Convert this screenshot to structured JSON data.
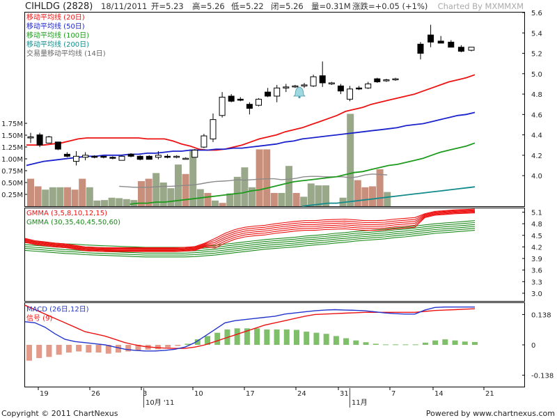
{
  "header": {
    "symbol": "CIHLDG (2828)",
    "date": "18/11/2011",
    "open": "开=5.23",
    "high": "高=5.26",
    "low": "低=5.22",
    "close": "闭=5.26",
    "volume": "量=0.31M",
    "change": "涨跌=+0.05 (+1%)",
    "charted_by": "Charted By MXMMXM"
  },
  "footer": {
    "copyright": "Copyright © 2011 ChartNexus",
    "powered_by": "Powered by www.chartnexus.com"
  },
  "x_axis": {
    "tick_labels": [
      "19",
      "26",
      "3",
      "10",
      "17",
      "24",
      "31",
      "7",
      "14",
      "21"
    ],
    "month_labels": [
      "10月 '11",
      "11月"
    ]
  },
  "colors": {
    "ma20": "#ee1111",
    "ma50": "#1a22cc",
    "ma100": "#1c9a1c",
    "ma200": "#138a8a",
    "vol_ma": "#8a8a8a",
    "vol_up": "#9aa88a",
    "vol_down": "#c8907c",
    "gmma_short": "#ee1111",
    "gmma_long": "#1a8a1a",
    "macd": "#2233cc",
    "signal": "#ee1111",
    "hist_pos": "#7fbf6a",
    "hist_neg": "#e49a88"
  },
  "chart_data": [
    {
      "type": "candlestick",
      "title": "CIHLDG (2828)",
      "ylim": [
        3.7,
        5.6
      ],
      "y_ticks": [
        4.0,
        4.2,
        4.4,
        4.6,
        4.8,
        5.0,
        5.2,
        5.4,
        5.6
      ],
      "y_tick_labels": [
        "4.0",
        "4.2",
        "4.4",
        "4.6",
        "4.8",
        "5.0",
        "5.2",
        "5.4",
        "5.6"
      ],
      "candles": [
        {
          "o": 4.37,
          "h": 4.42,
          "l": 4.32,
          "c": 4.38
        },
        {
          "o": 4.4,
          "h": 4.42,
          "l": 4.28,
          "c": 4.3
        },
        {
          "o": 4.32,
          "h": 4.39,
          "l": 4.33,
          "c": 4.38
        },
        {
          "o": 4.33,
          "h": 4.33,
          "l": 4.25,
          "c": 4.26
        },
        {
          "o": 4.21,
          "h": 4.23,
          "l": 4.18,
          "c": 4.19
        },
        {
          "o": 4.14,
          "h": 4.24,
          "l": 4.1,
          "c": 4.19
        },
        {
          "o": 4.18,
          "h": 4.23,
          "l": 4.15,
          "c": 4.2
        },
        {
          "o": 4.19,
          "h": 4.2,
          "l": 4.17,
          "c": 4.18
        },
        {
          "o": 4.19,
          "h": 4.19,
          "l": 4.17,
          "c": 4.18
        },
        {
          "o": 4.18,
          "h": 4.19,
          "l": 4.16,
          "c": 4.17
        },
        {
          "o": 4.15,
          "h": 4.2,
          "l": 4.15,
          "c": 4.19
        },
        {
          "o": 4.21,
          "h": 4.22,
          "l": 4.18,
          "c": 4.19
        },
        {
          "o": 4.19,
          "h": 4.2,
          "l": 4.15,
          "c": 4.16
        },
        {
          "o": 4.19,
          "h": 4.2,
          "l": 4.16,
          "c": 4.16
        },
        {
          "o": 4.18,
          "h": 4.24,
          "l": 4.16,
          "c": 4.2
        },
        {
          "o": 4.19,
          "h": 4.21,
          "l": 4.17,
          "c": 4.18
        },
        {
          "o": 4.18,
          "h": 4.2,
          "l": 4.17,
          "c": 4.19
        },
        {
          "o": 4.17,
          "h": 4.18,
          "l": 4.16,
          "c": 4.17
        },
        {
          "o": 4.18,
          "h": 4.26,
          "l": 4.18,
          "c": 4.25
        },
        {
          "o": 4.28,
          "h": 4.41,
          "l": 4.27,
          "c": 4.39
        },
        {
          "o": 4.36,
          "h": 4.61,
          "l": 4.33,
          "c": 4.55
        },
        {
          "o": 4.59,
          "h": 4.82,
          "l": 4.57,
          "c": 4.77
        },
        {
          "o": 4.78,
          "h": 4.8,
          "l": 4.72,
          "c": 4.73
        },
        {
          "o": 4.75,
          "h": 4.77,
          "l": 4.73,
          "c": 4.74
        },
        {
          "o": 4.7,
          "h": 4.72,
          "l": 4.6,
          "c": 4.66
        },
        {
          "o": 4.69,
          "h": 4.76,
          "l": 4.68,
          "c": 4.75
        },
        {
          "o": 4.82,
          "h": 4.86,
          "l": 4.77,
          "c": 4.78
        },
        {
          "o": 4.78,
          "h": 4.89,
          "l": 4.72,
          "c": 4.86
        },
        {
          "o": 4.86,
          "h": 4.9,
          "l": 4.82,
          "c": 4.87
        },
        {
          "o": 4.88,
          "h": 4.89,
          "l": 4.86,
          "c": 4.88
        },
        {
          "o": 4.88,
          "h": 4.91,
          "l": 4.86,
          "c": 4.89
        },
        {
          "o": 4.88,
          "h": 4.99,
          "l": 4.87,
          "c": 4.97
        },
        {
          "o": 4.98,
          "h": 5.12,
          "l": 4.87,
          "c": 4.91
        },
        {
          "o": 4.91,
          "h": 4.92,
          "l": 4.89,
          "c": 4.91
        },
        {
          "o": 4.88,
          "h": 4.9,
          "l": 4.8,
          "c": 4.83
        },
        {
          "o": 4.75,
          "h": 4.88,
          "l": 4.73,
          "c": 4.85
        },
        {
          "o": 4.86,
          "h": 4.88,
          "l": 4.84,
          "c": 4.85
        },
        {
          "o": 4.86,
          "h": 4.92,
          "l": 4.85,
          "c": 4.9
        },
        {
          "o": 4.95,
          "h": 4.96,
          "l": 4.91,
          "c": 4.92
        },
        {
          "o": 4.93,
          "h": 4.95,
          "l": 4.92,
          "c": 4.94
        },
        {
          "o": 4.94,
          "h": 4.96,
          "l": 4.93,
          "c": 4.95
        }
      ],
      "candle_gap_after_index": 40,
      "late_candles": [
        {
          "o": 5.29,
          "h": 5.31,
          "l": 5.14,
          "c": 5.2
        },
        {
          "o": 5.38,
          "h": 5.48,
          "l": 5.26,
          "c": 5.31
        },
        {
          "o": 5.32,
          "h": 5.37,
          "l": 5.3,
          "c": 5.3
        },
        {
          "o": 5.31,
          "h": 5.33,
          "l": 5.26,
          "c": 5.26
        },
        {
          "o": 5.26,
          "h": 5.28,
          "l": 5.21,
          "c": 5.22
        },
        {
          "o": 5.23,
          "h": 5.26,
          "l": 5.22,
          "c": 5.26
        }
      ],
      "series": [
        {
          "name": "移动平均线 (20日)",
          "color": "#ee1111",
          "values": [
            4.3,
            4.3,
            4.3,
            4.31,
            4.32,
            4.34,
            4.36,
            4.37,
            4.37,
            4.37,
            4.37,
            4.37,
            4.37,
            4.37,
            4.36,
            4.36,
            4.36,
            4.34,
            4.31,
            4.29,
            4.26,
            4.25,
            4.25,
            4.26,
            4.28,
            4.3,
            4.33,
            4.36,
            4.38,
            4.4,
            4.43,
            4.45,
            4.47,
            4.5,
            4.53,
            4.56,
            4.59,
            4.63,
            4.65,
            4.67,
            4.7,
            4.72,
            4.74,
            4.76,
            4.78,
            4.8,
            4.83,
            4.86,
            4.89,
            4.92,
            4.94,
            4.96,
            4.99
          ]
        },
        {
          "name": "移动平均线 (50日)",
          "color": "#1a22cc",
          "values": [
            4.1,
            4.12,
            4.14,
            4.15,
            4.16,
            4.17,
            4.18,
            4.19,
            4.19,
            4.2,
            4.2,
            4.2,
            4.21,
            4.21,
            4.22,
            4.22,
            4.23,
            4.24,
            4.24,
            4.25,
            4.25,
            4.25,
            4.26,
            4.26,
            4.27,
            4.27,
            4.28,
            4.29,
            4.3,
            4.31,
            4.33,
            4.34,
            4.36,
            4.37,
            4.38,
            4.39,
            4.4,
            4.41,
            4.42,
            4.43,
            4.44,
            4.45,
            4.46,
            4.47,
            4.49,
            4.5,
            4.51,
            4.53,
            4.55,
            4.57,
            4.59,
            4.6,
            4.62
          ]
        },
        {
          "name": "移动平均线 (100日)",
          "color": "#1c9a1c",
          "values": [
            null,
            null,
            null,
            null,
            null,
            null,
            null,
            null,
            null,
            null,
            null,
            null,
            3.72,
            3.73,
            3.73,
            3.74,
            3.74,
            3.75,
            3.76,
            3.77,
            3.78,
            3.79,
            3.8,
            3.81,
            3.82,
            3.83,
            3.85,
            3.86,
            3.88,
            3.9,
            3.92,
            3.94,
            3.95,
            3.96,
            3.97,
            3.98,
            3.99,
            4.01,
            4.03,
            4.04,
            4.06,
            4.08,
            4.1,
            4.11,
            4.13,
            4.15,
            4.17,
            4.2,
            4.23,
            4.25,
            4.27,
            4.29,
            4.32
          ]
        },
        {
          "name": "移动平均线 (200日)",
          "color": "#138a8a",
          "values": [
            null,
            null,
            null,
            null,
            null,
            null,
            null,
            null,
            null,
            null,
            null,
            null,
            null,
            null,
            null,
            null,
            null,
            null,
            null,
            null,
            null,
            null,
            null,
            null,
            null,
            null,
            null,
            null,
            null,
            null,
            null,
            null,
            3.7,
            3.71,
            3.72,
            3.73,
            3.73,
            3.74,
            3.75,
            3.76,
            3.77,
            3.78,
            3.79,
            3.8,
            3.81,
            3.82,
            3.83,
            3.84,
            3.85,
            3.86,
            3.87,
            3.88,
            3.89
          ]
        }
      ],
      "volume": {
        "name": "交易量移动平均线 (14日)",
        "ylim": [
          0,
          2.0
        ],
        "y_ticks": [
          0.25,
          0.5,
          0.75,
          1.0,
          1.25,
          1.5,
          1.75
        ],
        "y_tick_labels": [
          "0.25M",
          "0.50M",
          "0.75M",
          "1.00M",
          "1.25M",
          "1.50M",
          "1.75M"
        ],
        "bars": [
          0.58,
          0.42,
          0.35,
          0.4,
          0.4,
          0.4,
          0.35,
          0.58,
          0.4,
          0.12,
          0.13,
          0.18,
          0.17,
          0.15,
          0.13,
          0.53,
          0.58,
          0.7,
          0.5,
          0.38,
          0.88,
          0.68,
          1.2,
          0.36,
          0.28,
          0.12,
          0.07,
          0.27,
          0.62,
          0.82,
          0.4,
          1.2,
          1.2,
          0.28,
          0.28,
          0.85,
          0.28,
          0.2,
          0.48,
          0.44,
          0.44,
          0.18,
          1.95,
          0.55,
          0.4,
          0.42,
          0.78,
          0.3
        ],
        "bar_up": [
          false,
          false,
          true,
          true,
          true,
          false,
          false,
          false,
          true,
          true,
          true,
          true,
          true,
          true,
          true,
          false,
          false,
          true,
          true,
          true,
          true,
          false,
          true,
          true,
          false,
          true,
          false,
          true,
          true,
          true,
          true,
          false,
          false,
          false,
          true,
          true,
          false,
          true,
          true,
          true,
          true,
          true,
          true,
          false,
          false,
          false,
          false,
          true
        ],
        "ma_values": [
          null,
          null,
          null,
          null,
          null,
          null,
          null,
          null,
          null,
          null,
          null,
          null,
          0.42,
          0.41,
          0.4,
          0.4,
          0.4,
          0.41,
          0.42,
          0.42,
          0.43,
          0.44,
          0.45,
          0.47,
          0.5,
          0.52,
          0.53,
          0.54,
          0.56,
          0.55,
          0.56,
          0.57,
          0.58,
          0.58,
          0.56,
          0.57,
          0.59,
          0.62,
          0.63,
          0.63,
          0.62,
          0.62,
          0.6,
          0.62,
          0.66,
          0.68,
          0.67,
          0.66
        ]
      }
    },
    {
      "type": "line",
      "title": "GMMA",
      "legend": [
        "GMMA (3,5,8,10,12,15)",
        "GMMA (30,35,40,45,50,60)"
      ],
      "ylim": [
        2.8,
        5.2
      ],
      "y_ticks": [
        3.0,
        3.3,
        3.6,
        3.9,
        4.2,
        4.5,
        4.8,
        5.1
      ],
      "y_tick_labels": [
        "3.0",
        "3.3",
        "3.6",
        "3.9",
        "4.2",
        "4.5",
        "4.8",
        "5.1"
      ],
      "short_series_count": 6,
      "long_series_count": 6,
      "short_base": [
        4.42,
        4.36,
        4.33,
        4.3,
        4.28,
        4.24,
        4.2,
        4.19,
        4.18,
        4.18,
        4.18,
        4.18,
        4.18,
        4.18,
        4.18,
        4.18,
        4.19,
        4.21,
        4.3,
        4.42,
        4.55,
        4.65,
        4.71,
        4.74,
        4.76,
        4.8,
        4.83,
        4.86,
        4.88,
        4.88,
        4.9,
        4.91,
        4.92,
        4.9,
        4.88,
        4.88,
        4.89,
        4.92,
        4.94,
        4.96,
        5.06,
        5.12,
        5.14,
        5.16,
        5.17,
        5.18
      ],
      "long_base": [
        4.36,
        4.34,
        4.32,
        4.3,
        4.28,
        4.27,
        4.25,
        4.24,
        4.23,
        4.22,
        4.21,
        4.2,
        4.19,
        4.19,
        4.19,
        4.19,
        4.19,
        4.2,
        4.22,
        4.24,
        4.27,
        4.3,
        4.33,
        4.36,
        4.39,
        4.41,
        4.43,
        4.45,
        4.48,
        4.5,
        4.52,
        4.55,
        4.57,
        4.6,
        4.62,
        4.64,
        4.66,
        4.69,
        4.71,
        4.74,
        4.77,
        4.8,
        4.82,
        4.84,
        4.86,
        4.88
      ]
    },
    {
      "type": "line",
      "title": "MACD",
      "legend": [
        "MACD (26日,12日)",
        "信号 (9)"
      ],
      "ylim": [
        -0.19,
        0.19
      ],
      "y_ticks": [
        0.138,
        0,
        -0.138
      ],
      "y_tick_labels": [
        "0.138",
        "0",
        "-0.138"
      ],
      "series": [
        {
          "name": "MACD (26日,12日)",
          "color": "#2233cc",
          "values": [
            0.105,
            0.1,
            0.08,
            0.05,
            0.025,
            0.015,
            0.01,
            0.005,
            0.0,
            -0.01,
            -0.02,
            -0.025,
            -0.028,
            -0.028,
            -0.025,
            -0.02,
            -0.01,
            0.01,
            0.04,
            0.07,
            0.1,
            0.11,
            0.115,
            0.12,
            0.125,
            0.13,
            0.14,
            0.145,
            0.15,
            0.155,
            0.158,
            0.16,
            0.158,
            0.157,
            0.155,
            0.15,
            0.145,
            0.142,
            0.14,
            0.14,
            0.158,
            0.17,
            0.172,
            0.172,
            0.172,
            0.172
          ]
        },
        {
          "name": "信号 (9)",
          "color": "#ee1111",
          "values": [
            0.18,
            0.16,
            0.14,
            0.12,
            0.1,
            0.08,
            0.06,
            0.05,
            0.04,
            0.025,
            0.01,
            0.0,
            -0.008,
            -0.012,
            -0.015,
            -0.016,
            -0.016,
            -0.01,
            0.0,
            0.015,
            0.03,
            0.045,
            0.06,
            0.075,
            0.09,
            0.1,
            0.11,
            0.12,
            0.13,
            0.138,
            0.14,
            0.142,
            0.144,
            0.146,
            0.148,
            0.148,
            0.148,
            0.148,
            0.148,
            0.148,
            0.152,
            0.156,
            0.158,
            0.16,
            0.162,
            0.164
          ]
        }
      ],
      "histogram": [
        -0.072,
        -0.06,
        -0.055,
        -0.045,
        -0.035,
        -0.03,
        -0.035,
        -0.035,
        -0.04,
        -0.035,
        -0.03,
        -0.025,
        -0.022,
        -0.02,
        -0.012,
        -0.005,
        0.005,
        0.025,
        0.04,
        0.055,
        0.07,
        0.075,
        0.075,
        0.075,
        0.07,
        0.07,
        0.07,
        0.068,
        0.06,
        0.055,
        0.05,
        0.04,
        0.03,
        0.02,
        0.012,
        0.005,
        0.002,
        0.002,
        0.002,
        0.002,
        0.01,
        0.02,
        0.025,
        0.02,
        0.015,
        0.013
      ]
    }
  ]
}
